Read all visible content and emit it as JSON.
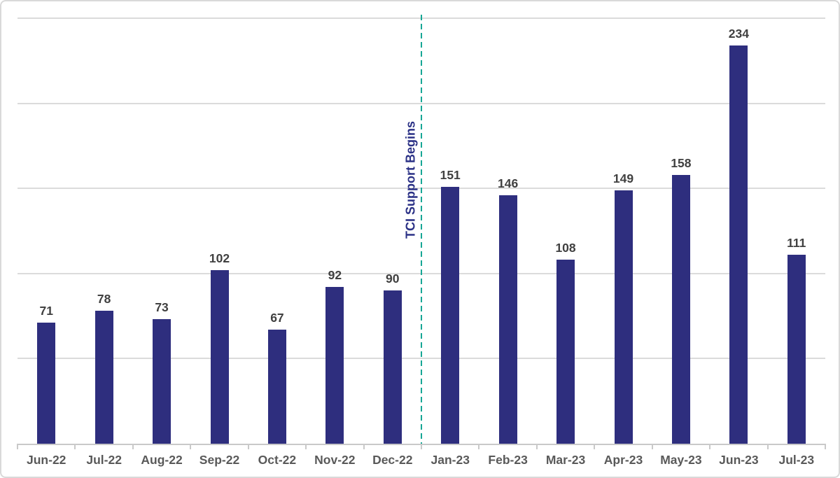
{
  "chart_data": {
    "type": "bar",
    "title": "",
    "xlabel": "",
    "ylabel": "",
    "categories": [
      "Jun-22",
      "Jul-22",
      "Aug-22",
      "Sep-22",
      "Oct-22",
      "Nov-22",
      "Dec-22",
      "Jan-23",
      "Feb-23",
      "Mar-23",
      "Apr-23",
      "May-23",
      "Jun-23",
      "Jul-23"
    ],
    "values": [
      71,
      78,
      73,
      102,
      67,
      92,
      90,
      151,
      146,
      108,
      149,
      158,
      234,
      111
    ],
    "ylim": [
      0,
      250
    ],
    "gridline_interval": 50,
    "grid": true,
    "legend_position": "none",
    "data_labels_shown": true,
    "y_axis_labels_shown": false,
    "colors": {
      "bar": "#2E2E7E",
      "value_label": "#404040",
      "axis_label": "#595959",
      "gridline": "#DBDBDB",
      "axis_line": "#C9C9C9",
      "background": "#FFFFFF",
      "border": "#D9D9D9"
    },
    "annotation": {
      "text": "TCI Support Begins",
      "text_color": "#2B3186",
      "line_color": "#17A795",
      "line_style": "dashed",
      "line_between_categories": [
        "Dec-22",
        "Jan-23"
      ]
    }
  }
}
